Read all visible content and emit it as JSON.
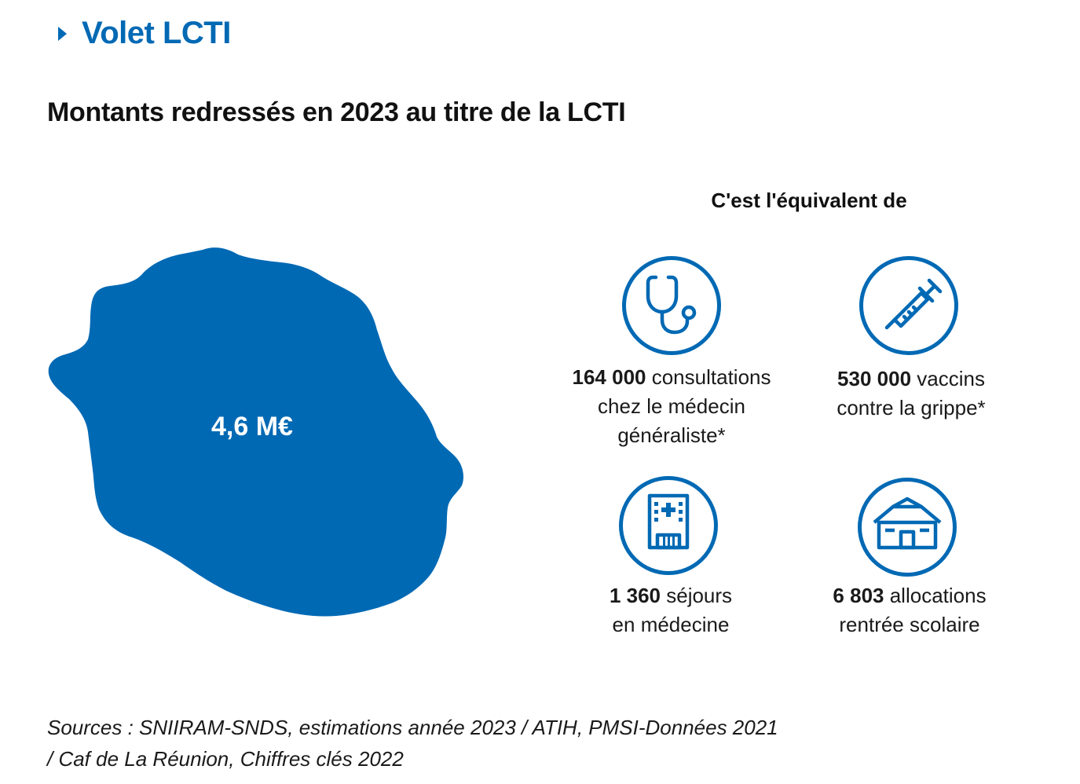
{
  "header": {
    "section_title": "Volet LCTI"
  },
  "main_title": "Montants redressés en 2023 au titre de la LCTI",
  "island": {
    "amount": "4,6 M€"
  },
  "equivalents": {
    "heading": "C'est l'équivalent de",
    "items": [
      {
        "icon": "stethoscope-icon",
        "value": "164 000",
        "line1": " consultations",
        "line2": "chez le médecin",
        "line3": "généraliste*"
      },
      {
        "icon": "syringe-icon",
        "value": "530 000",
        "line1": " vaccins",
        "line2": "contre la grippe*"
      },
      {
        "icon": "hospital-icon",
        "value": "1 360",
        "line1": " séjours",
        "line2": "en médecine"
      },
      {
        "icon": "house-icon",
        "value": "6 803",
        "line1": " allocations",
        "line2": "rentrée scolaire"
      }
    ]
  },
  "sources": {
    "line1": "Sources : SNIIRAM-SNDS, estimations année 2023 / ATIH, PMSI-Données 2021",
    "line2": "/ Caf de La Réunion, Chiffres clés 2022"
  },
  "colors": {
    "accent": "#0069b4",
    "text": "#1a1a1a"
  }
}
